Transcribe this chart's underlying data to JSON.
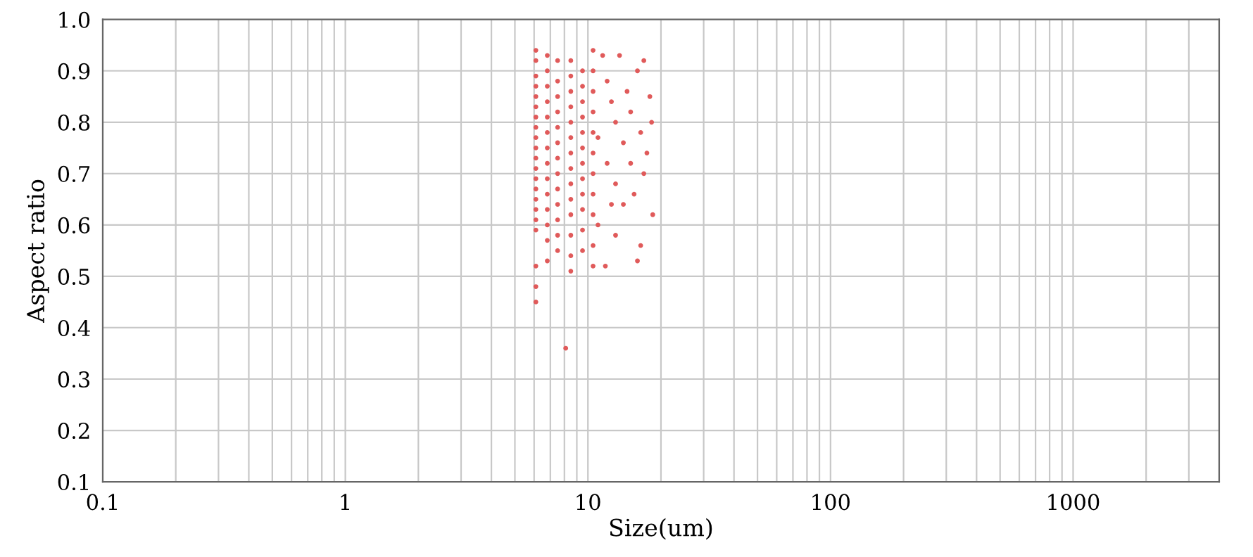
{
  "chart_data": {
    "type": "scatter",
    "xlabel": "Size(um)",
    "ylabel": "Aspect ratio",
    "log": "x",
    "grid": true,
    "marker": "circle",
    "xlim": [
      0.1,
      4000
    ],
    "ylim": [
      0.1,
      1.0
    ],
    "xticks": [
      0.1,
      {
        "value": 0.2,
        "label": null
      },
      {
        "value": 0.3,
        "label": null
      },
      {
        "value": 0.4,
        "label": null
      },
      {
        "value": 0.5,
        "label": null
      },
      {
        "value": 0.6,
        "label": null
      },
      {
        "value": 0.7,
        "label": null
      },
      {
        "value": 0.8,
        "label": null
      },
      {
        "value": 0.9,
        "label": null
      },
      {
        "value": 1,
        "label": "1"
      },
      {
        "value": 2,
        "label": null
      },
      {
        "value": 3,
        "label": null
      },
      {
        "value": 4,
        "label": null
      },
      {
        "value": 5,
        "label": null
      },
      {
        "value": 6,
        "label": null
      },
      {
        "value": 7,
        "label": null
      },
      {
        "value": 8,
        "label": null
      },
      {
        "value": 9,
        "label": null
      },
      {
        "value": 10,
        "label": "10"
      },
      {
        "value": 20,
        "label": null
      },
      {
        "value": 30,
        "label": null
      },
      {
        "value": 40,
        "label": null
      },
      {
        "value": 50,
        "label": null
      },
      {
        "value": 60,
        "label": null
      },
      {
        "value": 70,
        "label": null
      },
      {
        "value": 80,
        "label": null
      },
      {
        "value": 90,
        "label": null
      },
      {
        "value": 100,
        "label": "100"
      },
      {
        "value": 200,
        "label": null
      },
      {
        "value": 300,
        "label": null
      },
      {
        "value": 400,
        "label": null
      },
      {
        "value": 500,
        "label": null
      },
      {
        "value": 600,
        "label": null
      },
      {
        "value": 700,
        "label": null
      },
      {
        "value": 800,
        "label": null
      },
      {
        "value": 900,
        "label": null
      },
      {
        "value": 1000,
        "label": "1000"
      },
      {
        "value": 2000,
        "label": null
      },
      {
        "value": 3000,
        "label": null
      }
    ],
    "yticks": [
      0.1,
      0.2,
      0.3,
      0.4,
      0.5,
      0.6,
      0.7,
      0.8,
      0.9,
      {
        "value": 1.0,
        "label": "1.0"
      }
    ],
    "series": [
      {
        "color": "#e05a5a",
        "x": [
          6.1,
          6.1,
          6.1,
          6.1,
          6.1,
          6.1,
          6.1,
          6.1,
          6.1,
          6.1,
          6.1,
          6.1,
          6.1,
          6.1,
          6.1,
          6.1,
          6.1,
          6.1,
          6.1,
          6.1,
          6.1,
          6.8,
          6.8,
          6.8,
          6.8,
          6.8,
          6.8,
          6.8,
          6.8,
          6.8,
          6.8,
          6.8,
          6.8,
          6.8,
          6.8,
          7.5,
          7.5,
          7.5,
          7.5,
          7.5,
          7.5,
          7.5,
          7.5,
          7.5,
          7.5,
          7.5,
          7.5,
          7.5,
          8.1,
          8.5,
          8.5,
          8.5,
          8.5,
          8.5,
          8.5,
          8.5,
          8.5,
          8.5,
          8.5,
          8.5,
          8.5,
          8.5,
          8.5,
          9.5,
          9.5,
          9.5,
          9.5,
          9.5,
          9.5,
          9.5,
          9.5,
          9.5,
          9.5,
          9.5,
          9.5,
          10.5,
          10.5,
          10.5,
          10.5,
          10.5,
          10.5,
          10.5,
          10.5,
          10.5,
          10.5,
          10.5,
          11.5,
          12,
          12.5,
          13,
          13.5,
          14,
          12,
          13,
          11,
          11.8,
          14.5,
          15,
          15.5,
          16,
          16.5,
          17,
          17,
          16.5,
          16,
          18,
          18.3,
          18.5,
          17.5,
          14,
          13,
          15,
          12.5,
          11
        ],
        "values": [
          0.94,
          0.92,
          0.89,
          0.87,
          0.85,
          0.83,
          0.81,
          0.79,
          0.77,
          0.75,
          0.73,
          0.71,
          0.69,
          0.67,
          0.65,
          0.63,
          0.61,
          0.59,
          0.52,
          0.48,
          0.45,
          0.93,
          0.9,
          0.87,
          0.84,
          0.81,
          0.78,
          0.75,
          0.72,
          0.69,
          0.66,
          0.63,
          0.6,
          0.57,
          0.53,
          0.92,
          0.88,
          0.85,
          0.82,
          0.79,
          0.76,
          0.73,
          0.7,
          0.67,
          0.64,
          0.61,
          0.58,
          0.55,
          0.36,
          0.92,
          0.89,
          0.86,
          0.83,
          0.8,
          0.77,
          0.74,
          0.71,
          0.68,
          0.65,
          0.62,
          0.58,
          0.54,
          0.51,
          0.9,
          0.87,
          0.84,
          0.81,
          0.78,
          0.75,
          0.72,
          0.69,
          0.66,
          0.63,
          0.59,
          0.55,
          0.94,
          0.9,
          0.86,
          0.82,
          0.78,
          0.74,
          0.7,
          0.66,
          0.62,
          0.56,
          0.52,
          0.93,
          0.88,
          0.84,
          0.8,
          0.93,
          0.76,
          0.72,
          0.68,
          0.6,
          0.52,
          0.86,
          0.82,
          0.66,
          0.9,
          0.78,
          0.92,
          0.7,
          0.56,
          0.53,
          0.85,
          0.8,
          0.62,
          0.74,
          0.64,
          0.58,
          0.72,
          0.64,
          0.77
        ]
      }
    ]
  }
}
